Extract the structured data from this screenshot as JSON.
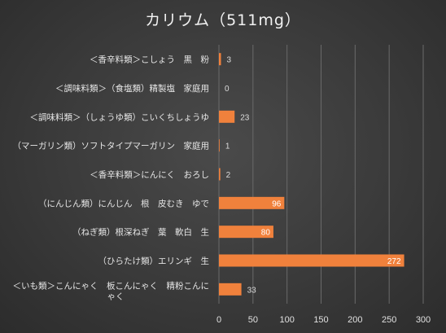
{
  "chart_data": {
    "type": "bar",
    "orientation": "horizontal",
    "title": "カリウム（511mg）",
    "categories": [
      "＜香辛料類＞こしょう　黒　粉",
      "＜調味料類＞（食塩類）精製塩　家庭用",
      "＜調味料類＞（しょうゆ類）こいくちしょうゆ",
      "（マーガリン類）ソフトタイプマーガリン　家庭用",
      "＜香辛料類＞にんにく　おろし",
      "（にんじん類）にんじん　根　皮むき　ゆで",
      "（ねぎ類）根深ねぎ　葉　軟白　生",
      "（ひらたけ類）エリンギ　生",
      "＜いも類＞こんにゃく　板こんにゃく　精粉こんにゃく"
    ],
    "values": [
      3,
      0,
      23,
      1,
      2,
      96,
      80,
      272,
      33
    ],
    "data_labels": [
      "3",
      "0",
      "23",
      "1",
      "2",
      "96",
      "80",
      "272",
      "33"
    ],
    "xlim": [
      0,
      300
    ],
    "x_ticks": [
      "0",
      "50",
      "100",
      "150",
      "200",
      "250",
      "300"
    ],
    "grid": true,
    "bar_color": "#f0813c"
  }
}
